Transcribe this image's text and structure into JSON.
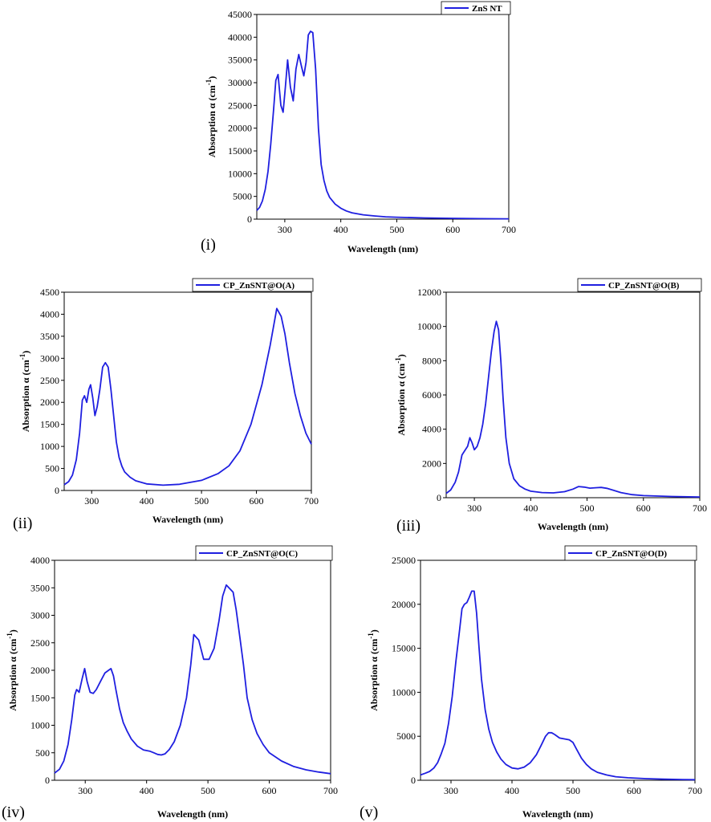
{
  "colors": {
    "series": "#1f1fe0",
    "axis": "#000000",
    "background": "#ffffff"
  },
  "chart_data": [
    {
      "id": "i",
      "type": "line",
      "panel_label": "(i)",
      "legend": "ZnS NT",
      "xlabel": "Wavelength (nm)",
      "ylabel_main": "Absorption α (cm",
      "ylabel_sup": "-1",
      "ylabel_close": ")",
      "xlim": [
        250,
        700
      ],
      "ylim": [
        0,
        45000
      ],
      "xticks": [
        300,
        400,
        500,
        600,
        700
      ],
      "yticks": [
        0,
        5000,
        10000,
        15000,
        20000,
        25000,
        30000,
        35000,
        40000,
        45000
      ],
      "series": [
        {
          "name": "ZnS NT",
          "x": [
            250,
            255,
            260,
            265,
            270,
            275,
            280,
            284,
            288,
            293,
            297,
            301,
            305,
            310,
            315,
            320,
            325,
            330,
            334,
            338,
            342,
            346,
            350,
            355,
            360,
            365,
            370,
            375,
            380,
            390,
            400,
            410,
            420,
            440,
            460,
            480,
            500,
            550,
            600,
            650,
            700
          ],
          "y": [
            1900,
            2600,
            4000,
            6500,
            10500,
            16500,
            24000,
            30500,
            31800,
            25000,
            23500,
            29000,
            35000,
            29000,
            26000,
            33000,
            36200,
            33500,
            31500,
            34500,
            40500,
            41300,
            41000,
            33000,
            20000,
            12000,
            8500,
            6200,
            4800,
            3300,
            2400,
            1800,
            1400,
            950,
            700,
            520,
            420,
            260,
            170,
            110,
            70
          ]
        }
      ]
    },
    {
      "id": "ii",
      "type": "line",
      "panel_label": "(ii)",
      "legend": "CP_ZnSNT@O(A)",
      "xlabel": "Wavelength (nm)",
      "ylabel_main": "Absorption α (cm",
      "ylabel_sup": "-1",
      "ylabel_close": ")",
      "xlim": [
        250,
        700
      ],
      "ylim": [
        0,
        4500
      ],
      "xticks": [
        300,
        400,
        500,
        600,
        700
      ],
      "yticks": [
        0,
        500,
        1000,
        1500,
        2000,
        2500,
        3000,
        3500,
        4000,
        4500
      ],
      "series": [
        {
          "name": "CP_ZnSNT@O(A)",
          "x": [
            250,
            258,
            265,
            272,
            278,
            283,
            287,
            291,
            295,
            298,
            302,
            306,
            310,
            315,
            320,
            325,
            330,
            335,
            340,
            345,
            350,
            355,
            360,
            370,
            380,
            400,
            430,
            460,
            500,
            530,
            550,
            570,
            590,
            610,
            625,
            637,
            645,
            652,
            660,
            670,
            680,
            690,
            700
          ],
          "y": [
            130,
            200,
            350,
            700,
            1300,
            2050,
            2150,
            2000,
            2300,
            2400,
            2100,
            1700,
            1900,
            2300,
            2800,
            2900,
            2800,
            2300,
            1700,
            1100,
            750,
            550,
            420,
            300,
            220,
            150,
            120,
            140,
            230,
            380,
            560,
            900,
            1500,
            2400,
            3300,
            4130,
            3950,
            3550,
            2900,
            2200,
            1700,
            1300,
            1050
          ]
        }
      ]
    },
    {
      "id": "iii",
      "type": "line",
      "panel_label": "(iii)",
      "legend": "CP_ZnSNT@O(B)",
      "xlabel": "Wavelength (nm)",
      "ylabel_main": "Absorption α (cm",
      "ylabel_sup": "-1",
      "ylabel_close": ")",
      "xlim": [
        250,
        700
      ],
      "ylim": [
        0,
        12000
      ],
      "xticks": [
        300,
        400,
        500,
        600,
        700
      ],
      "yticks": [
        0,
        2000,
        4000,
        6000,
        8000,
        10000,
        12000
      ],
      "series": [
        {
          "name": "CP_ZnSNT@O(B)",
          "x": [
            250,
            258,
            266,
            272,
            278,
            284,
            288,
            292,
            296,
            300,
            305,
            310,
            315,
            320,
            325,
            330,
            335,
            339,
            343,
            347,
            351,
            356,
            362,
            370,
            380,
            390,
            400,
            420,
            440,
            460,
            475,
            485,
            495,
            505,
            515,
            525,
            535,
            545,
            560,
            580,
            600,
            650,
            700
          ],
          "y": [
            250,
            450,
            900,
            1500,
            2500,
            2800,
            3000,
            3500,
            3200,
            2800,
            3000,
            3500,
            4300,
            5500,
            7000,
            8500,
            9700,
            10300,
            9800,
            8000,
            5800,
            3500,
            2000,
            1100,
            700,
            500,
            380,
            300,
            280,
            350,
            500,
            650,
            620,
            560,
            580,
            600,
            550,
            450,
            300,
            180,
            120,
            70,
            40
          ]
        }
      ]
    },
    {
      "id": "iv",
      "type": "line",
      "panel_label": "(iv)",
      "legend": "CP_ZnSNT@O(C)",
      "xlabel": "Wavelength (nm)",
      "ylabel_main": "Absorption α (cm",
      "ylabel_sup": "-1",
      "ylabel_close": ")",
      "xlim": [
        250,
        700
      ],
      "ylim": [
        0,
        4000
      ],
      "xticks": [
        300,
        400,
        500,
        600,
        700
      ],
      "yticks": [
        0,
        500,
        1000,
        1500,
        2000,
        2500,
        3000,
        3500,
        4000
      ],
      "series": [
        {
          "name": "CP_ZnSNT@O(C)",
          "x": [
            250,
            258,
            265,
            272,
            278,
            283,
            286,
            290,
            295,
            299,
            303,
            308,
            313,
            318,
            325,
            332,
            338,
            342,
            346,
            350,
            356,
            362,
            368,
            375,
            385,
            395,
            405,
            412,
            418,
            424,
            430,
            437,
            445,
            455,
            465,
            472,
            477,
            485,
            493,
            502,
            510,
            518,
            524,
            530,
            536,
            541,
            546,
            552,
            558,
            564,
            572,
            580,
            590,
            600,
            620,
            640,
            660,
            680,
            700
          ],
          "y": [
            130,
            200,
            350,
            650,
            1100,
            1550,
            1650,
            1600,
            1850,
            2030,
            1800,
            1600,
            1580,
            1650,
            1800,
            1950,
            2000,
            2030,
            1900,
            1650,
            1300,
            1050,
            900,
            750,
            620,
            550,
            530,
            500,
            470,
            460,
            480,
            560,
            700,
            1000,
            1500,
            2100,
            2650,
            2550,
            2200,
            2200,
            2400,
            2900,
            3350,
            3550,
            3480,
            3420,
            3100,
            2600,
            2100,
            1500,
            1100,
            850,
            650,
            500,
            350,
            250,
            190,
            150,
            120
          ]
        }
      ]
    },
    {
      "id": "v",
      "type": "line",
      "panel_label": "(v)",
      "legend": "CP_ZnSNT@O(D)",
      "xlabel": "Wavelength (nm)",
      "ylabel_main": "Absorption α (cm",
      "ylabel_sup": "-1",
      "ylabel_close": ")",
      "xlim": [
        250,
        700
      ],
      "ylim": [
        0,
        25000
      ],
      "xticks": [
        300,
        400,
        500,
        600,
        700
      ],
      "yticks": [
        0,
        5000,
        10000,
        15000,
        20000,
        25000
      ],
      "series": [
        {
          "name": "CP_ZnSNT@O(D)",
          "x": [
            250,
            258,
            265,
            272,
            278,
            284,
            290,
            296,
            302,
            308,
            314,
            318,
            322,
            326,
            330,
            334,
            338,
            342,
            346,
            350,
            356,
            362,
            368,
            375,
            382,
            390,
            400,
            410,
            420,
            430,
            440,
            448,
            455,
            460,
            465,
            470,
            478,
            486,
            494,
            500,
            506,
            514,
            522,
            530,
            540,
            555,
            570,
            590,
            620,
            650,
            680,
            700
          ],
          "y": [
            600,
            800,
            1000,
            1400,
            2000,
            3000,
            4200,
            6500,
            9500,
            13500,
            17000,
            19500,
            20000,
            20200,
            20800,
            21500,
            21500,
            19000,
            15000,
            11500,
            8000,
            5800,
            4300,
            3200,
            2400,
            1800,
            1400,
            1300,
            1500,
            2000,
            2900,
            4000,
            5000,
            5400,
            5400,
            5200,
            4800,
            4700,
            4600,
            4300,
            3500,
            2500,
            1800,
            1300,
            900,
            600,
            400,
            280,
            180,
            120,
            80,
            60
          ]
        }
      ]
    }
  ]
}
